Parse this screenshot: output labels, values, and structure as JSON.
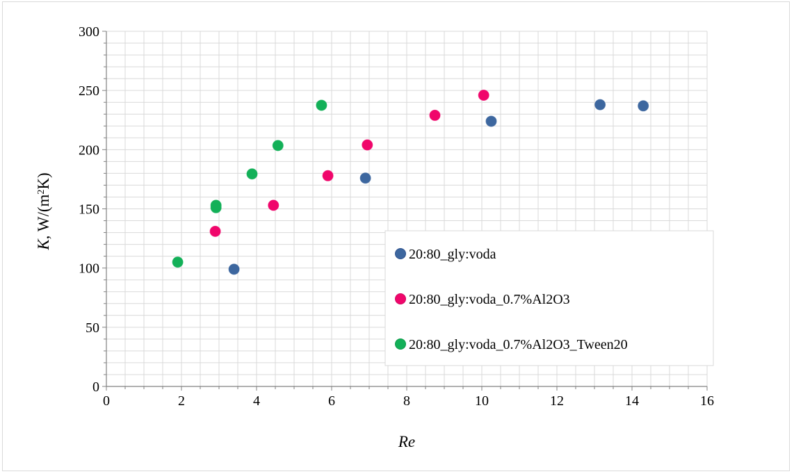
{
  "chart_data": {
    "type": "scatter",
    "xlabel": "Re",
    "ylabel": {
      "symbol": "K",
      "rest": ", W/(m",
      "sup": "2",
      "end": "K)"
    },
    "xlim": [
      0,
      16
    ],
    "ylim": [
      0,
      300
    ],
    "x_ticks": [
      0,
      2,
      4,
      6,
      8,
      10,
      12,
      14,
      16
    ],
    "y_ticks": [
      0,
      50,
      100,
      150,
      200,
      250,
      300
    ],
    "grid": true,
    "legend_position": "right",
    "series": [
      {
        "name": "20:80_gly:voda",
        "color": "#3d679f",
        "points": [
          [
            3.4,
            99
          ],
          [
            6.9,
            176
          ],
          [
            10.25,
            224
          ],
          [
            13.15,
            238
          ],
          [
            14.3,
            237
          ]
        ]
      },
      {
        "name": "20:80_gly:voda_0.7%Al2O3",
        "color": "#f0066b",
        "points": [
          [
            2.9,
            131
          ],
          [
            4.45,
            153
          ],
          [
            5.9,
            178
          ],
          [
            6.95,
            204
          ],
          [
            8.75,
            229
          ],
          [
            10.05,
            246
          ]
        ]
      },
      {
        "name": "20:80_gly:voda_0.7%Al2O3_Tween20",
        "color": "#13b058",
        "points": [
          [
            1.9,
            105
          ],
          [
            2.92,
            151
          ],
          [
            2.92,
            153
          ],
          [
            3.88,
            179.5
          ],
          [
            4.57,
            203.5
          ],
          [
            5.73,
            237.5
          ]
        ]
      }
    ]
  }
}
